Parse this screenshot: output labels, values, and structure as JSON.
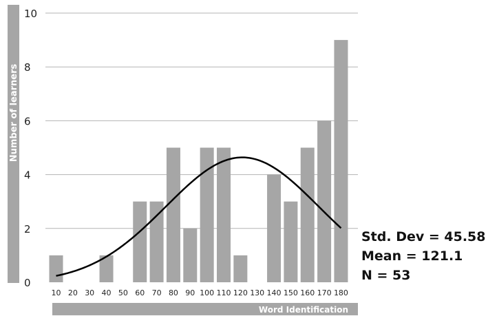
{
  "chart_data": {
    "type": "bar",
    "xlabel": "Word Identification",
    "ylabel": "Number of learners",
    "categories": [
      "10",
      "20",
      "30",
      "40",
      "50",
      "60",
      "70",
      "80",
      "90",
      "100",
      "110",
      "120",
      "130",
      "140",
      "150",
      "160",
      "170",
      "180"
    ],
    "values": [
      1,
      0,
      0,
      1,
      0,
      3,
      3,
      5,
      2,
      5,
      5,
      1,
      0,
      4,
      3,
      5,
      6,
      9
    ],
    "ylim": [
      0,
      10
    ],
    "yticks": [
      "0",
      "2",
      "4",
      "6",
      "8",
      "10"
    ],
    "ytick_values": [
      0,
      2,
      4,
      6,
      8,
      10
    ],
    "grid": true,
    "normal_curve": {
      "mean": 121.1,
      "std_dev": 45.58,
      "n": 53,
      "bin_width": 10
    },
    "colors": {
      "bar": "#a6a6a6",
      "label_band": "#a6a6a6",
      "grid": "#b3b3b3",
      "curve": "#000000"
    }
  },
  "stats": {
    "std_dev": "Std. Dev = 45.58",
    "mean": "Mean = 121.1",
    "n": "N = 53"
  }
}
